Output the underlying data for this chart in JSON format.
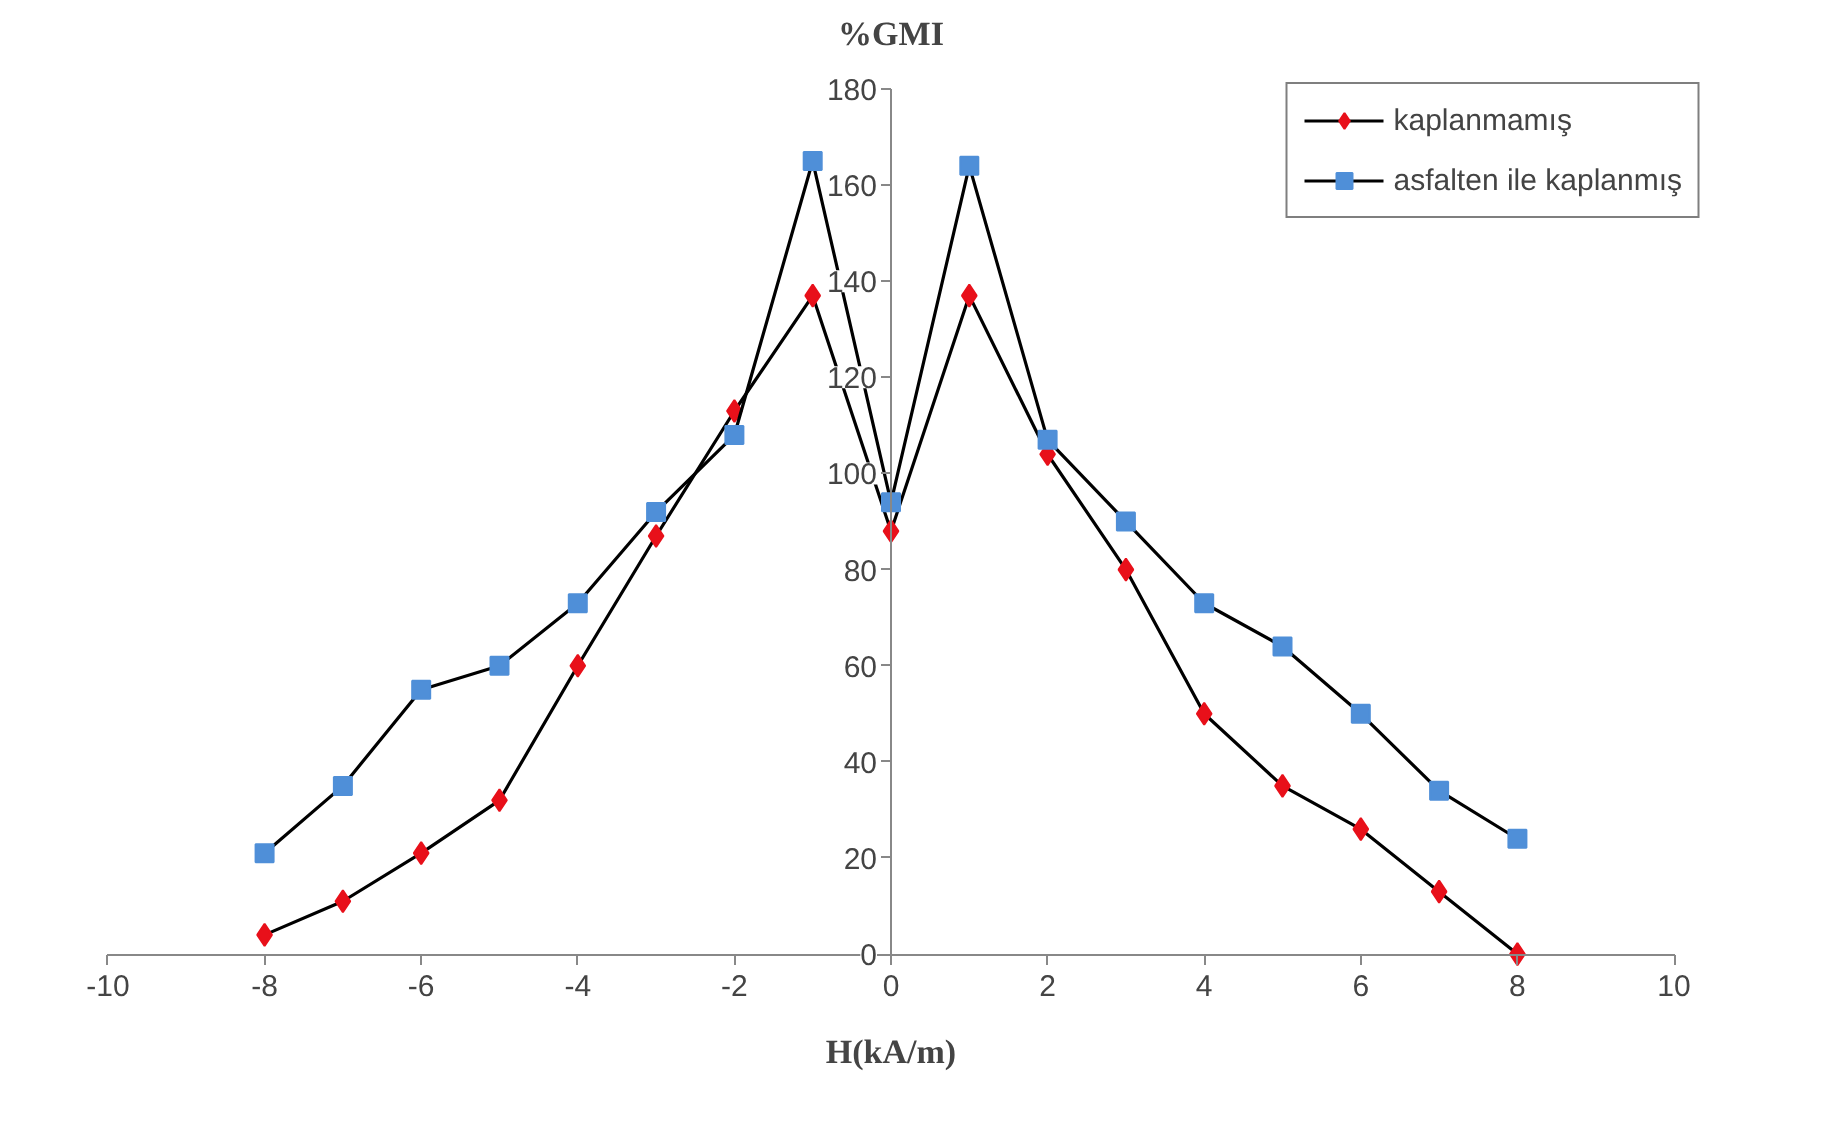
{
  "chart_data": {
    "type": "line",
    "xlabel": "H(kA/m)",
    "ylabel": "%GMI",
    "x": [
      -8,
      -7,
      -6,
      -5,
      -4,
      -3,
      -2,
      -1,
      0,
      1,
      2,
      3,
      4,
      5,
      6,
      7,
      8
    ],
    "series": [
      {
        "name": "kaplanmamış",
        "color": "#e8101a",
        "marker": "diamond",
        "values": [
          4,
          11,
          21,
          32,
          60,
          87,
          113,
          137,
          88,
          137,
          104,
          80,
          50,
          35,
          26,
          13,
          0
        ]
      },
      {
        "name": "asfalten ile kaplanmış",
        "color": "#4f8fd8",
        "marker": "square",
        "values": [
          21,
          35,
          55,
          60,
          73,
          92,
          108,
          165,
          94,
          164,
          107,
          90,
          73,
          64,
          50,
          34,
          24
        ]
      }
    ],
    "xlim": [
      -10,
      10
    ],
    "ylim": [
      0,
      180
    ],
    "xticks": [
      -10,
      -8,
      -6,
      -4,
      -2,
      0,
      2,
      4,
      6,
      8,
      10
    ],
    "yticks": [
      0,
      20,
      40,
      60,
      80,
      100,
      120,
      140,
      160,
      180
    ],
    "grid": false,
    "legend": "top right",
    "line_style": "solid"
  }
}
